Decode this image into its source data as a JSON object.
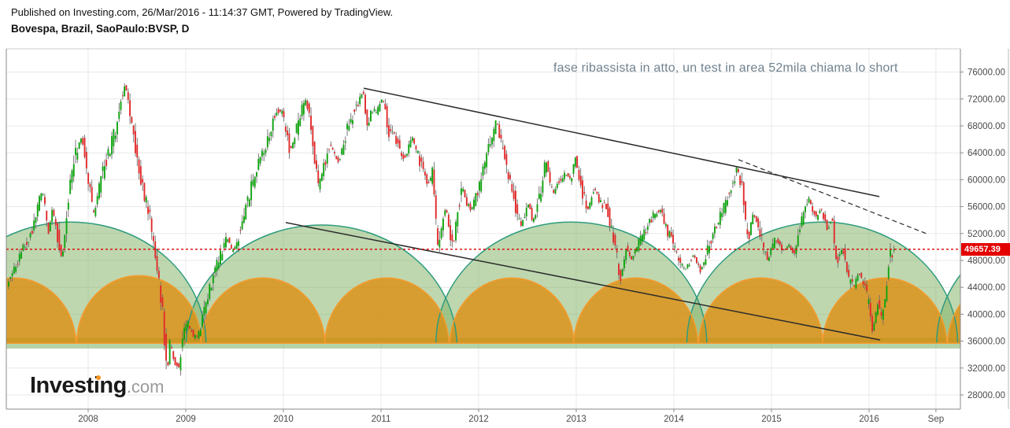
{
  "header": {
    "published": "Published on Investing.com, 26/Mar/2016 - 11:14:37 GMT, Powered by TradingView.",
    "symbol": "Bovespa, Brazil, SaoPaulo:BVSP, D"
  },
  "logo": {
    "brand": "Investing",
    "tld": ".com"
  },
  "chart_data": {
    "type": "candlestick",
    "symbol": "SaoPaulo:BVSP",
    "title": "Bovespa, Brazil, SaoPaulo:BVSP, D",
    "timeframe": "D",
    "last_price": 49657.39,
    "last_price_label": "49657.39",
    "annotation": {
      "text": "fase ribassista in atto, un test in area 52mila chiama lo short",
      "color": "#70828f"
    },
    "y_axis": {
      "ticks": [
        {
          "price": 76000,
          "label": "76000.00"
        },
        {
          "price": 72000,
          "label": "72000.00"
        },
        {
          "price": 68000,
          "label": "68000.00"
        },
        {
          "price": 64000,
          "label": "64000.00"
        },
        {
          "price": 60000,
          "label": "60000.00"
        },
        {
          "price": 56000,
          "label": "56000.00"
        },
        {
          "price": 52000,
          "label": "52000.00"
        },
        {
          "price": 48000,
          "label": "48000.00"
        },
        {
          "price": 44000,
          "label": "44000.00"
        },
        {
          "price": 40000,
          "label": "40000.00"
        },
        {
          "price": 36000,
          "label": "36000.00"
        },
        {
          "price": 32000,
          "label": "32000.00"
        },
        {
          "price": 28000,
          "label": "28000.00"
        }
      ]
    },
    "x_axis": {
      "ticks": [
        {
          "t": 2008,
          "label": "2008"
        },
        {
          "t": 2009,
          "label": "2009"
        },
        {
          "t": 2010,
          "label": "2010"
        },
        {
          "t": 2011,
          "label": "2011"
        },
        {
          "t": 2012,
          "label": "2012"
        },
        {
          "t": 2013,
          "label": "2013"
        },
        {
          "t": 2014,
          "label": "2014"
        },
        {
          "t": 2015,
          "label": "2015"
        },
        {
          "t": 2016,
          "label": "2016"
        },
        {
          "t": 2016.685,
          "label": "Sep"
        }
      ]
    },
    "price_line": {
      "price": 49657.39,
      "color": "#dd0000",
      "label_bg": "#e40000"
    },
    "trendlines": [
      {
        "t1": 2010.823,
        "p1": 73600,
        "t2": 2016.105,
        "p2": 57480,
        "dash": false
      },
      {
        "t1": 2010.024,
        "p1": 53620,
        "t2": 2016.113,
        "p2": 36180,
        "dash": false
      },
      {
        "t1": 2014.661,
        "p1": 62980,
        "t2": 2016.589,
        "p2": 51980,
        "dash": true
      }
    ],
    "cycles": {
      "base_price": 35700,
      "band": [
        34900,
        36500
      ],
      "band_fill": "rgba(120,175,97,0.55)",
      "green": {
        "centers": [
          2007.82,
          2010.39,
          2012.95,
          2015.52,
          2018.08
        ],
        "half_width_years": 1.387,
        "amplitude": 18000,
        "fill": "rgba(130,178,102,0.52)",
        "stroke": "#2e9c7e"
      },
      "orange": {
        "centers": [
          2007.24,
          2008.52,
          2009.79,
          2011.06,
          2012.34,
          2013.61,
          2014.89,
          2016.16,
          2017.44
        ],
        "half_width_years": 0.637,
        "amplitude": 10060,
        "fill": "rgba(224,135,0,0.72)",
        "stroke": "#f59b2e"
      }
    },
    "price_path": [
      [
        2007.161,
        43500
      ],
      [
        2007.242,
        46500
      ],
      [
        2007.339,
        49500
      ],
      [
        2007.435,
        52500
      ],
      [
        2007.54,
        58400
      ],
      [
        2007.605,
        52000
      ],
      [
        2007.645,
        55800
      ],
      [
        2007.742,
        47800
      ],
      [
        2007.806,
        57500
      ],
      [
        2007.863,
        63200
      ],
      [
        2007.944,
        66500
      ],
      [
        2008.0,
        61500
      ],
      [
        2008.065,
        54500
      ],
      [
        2008.145,
        60500
      ],
      [
        2008.21,
        63300
      ],
      [
        2008.29,
        67500
      ],
      [
        2008.387,
        74500
      ],
      [
        2008.468,
        67000
      ],
      [
        2008.532,
        61500
      ],
      [
        2008.597,
        57000
      ],
      [
        2008.645,
        54000
      ],
      [
        2008.726,
        46500
      ],
      [
        2008.774,
        40000
      ],
      [
        2008.815,
        31500
      ],
      [
        2008.847,
        35500
      ],
      [
        2008.887,
        33500
      ],
      [
        2008.935,
        31800
      ],
      [
        2008.984,
        37500
      ],
      [
        2009.032,
        38500
      ],
      [
        2009.081,
        36800
      ],
      [
        2009.129,
        36500
      ],
      [
        2009.194,
        40500
      ],
      [
        2009.258,
        44300
      ],
      [
        2009.339,
        47800
      ],
      [
        2009.435,
        51500
      ],
      [
        2009.484,
        49200
      ],
      [
        2009.532,
        50500
      ],
      [
        2009.613,
        55500
      ],
      [
        2009.694,
        59500
      ],
      [
        2009.758,
        62500
      ],
      [
        2009.839,
        65500
      ],
      [
        2009.935,
        70500
      ],
      [
        2010.0,
        70000
      ],
      [
        2010.081,
        64200
      ],
      [
        2010.161,
        68500
      ],
      [
        2010.242,
        72200
      ],
      [
        2010.306,
        66000
      ],
      [
        2010.371,
        58800
      ],
      [
        2010.435,
        62500
      ],
      [
        2010.484,
        65300
      ],
      [
        2010.532,
        63800
      ],
      [
        2010.581,
        62600
      ],
      [
        2010.645,
        66500
      ],
      [
        2010.742,
        70500
      ],
      [
        2010.823,
        73300
      ],
      [
        2010.871,
        68300
      ],
      [
        2010.903,
        69800
      ],
      [
        2010.968,
        70200
      ],
      [
        2011.024,
        72200
      ],
      [
        2011.089,
        67500
      ],
      [
        2011.169,
        65800
      ],
      [
        2011.25,
        63000
      ],
      [
        2011.331,
        66100
      ],
      [
        2011.411,
        62500
      ],
      [
        2011.492,
        59300
      ],
      [
        2011.54,
        61000
      ],
      [
        2011.589,
        49800
      ],
      [
        2011.637,
        53500
      ],
      [
        2011.677,
        56200
      ],
      [
        2011.718,
        51200
      ],
      [
        2011.758,
        50800
      ],
      [
        2011.798,
        55500
      ],
      [
        2011.839,
        59400
      ],
      [
        2011.887,
        56500
      ],
      [
        2011.935,
        55500
      ],
      [
        2011.984,
        57500
      ],
      [
        2012.032,
        59500
      ],
      [
        2012.113,
        64500
      ],
      [
        2012.194,
        68800
      ],
      [
        2012.274,
        63000
      ],
      [
        2012.339,
        59500
      ],
      [
        2012.435,
        52800
      ],
      [
        2012.484,
        55000
      ],
      [
        2012.524,
        56800
      ],
      [
        2012.556,
        53800
      ],
      [
        2012.589,
        54500
      ],
      [
        2012.645,
        58500
      ],
      [
        2012.702,
        62800
      ],
      [
        2012.766,
        57800
      ],
      [
        2012.823,
        59500
      ],
      [
        2012.903,
        61000
      ],
      [
        2012.952,
        59800
      ],
      [
        2013.0,
        63500
      ],
      [
        2013.065,
        58500
      ],
      [
        2013.129,
        55500
      ],
      [
        2013.194,
        58800
      ],
      [
        2013.258,
        56500
      ],
      [
        2013.323,
        55800
      ],
      [
        2013.395,
        50500
      ],
      [
        2013.468,
        45300
      ],
      [
        2013.516,
        49800
      ],
      [
        2013.573,
        48000
      ],
      [
        2013.645,
        50500
      ],
      [
        2013.726,
        52500
      ],
      [
        2013.806,
        54800
      ],
      [
        2013.871,
        55600
      ],
      [
        2013.935,
        52500
      ],
      [
        2014.0,
        50800
      ],
      [
        2014.065,
        47800
      ],
      [
        2014.129,
        46600
      ],
      [
        2014.21,
        48800
      ],
      [
        2014.29,
        46300
      ],
      [
        2014.371,
        50500
      ],
      [
        2014.452,
        53500
      ],
      [
        2014.516,
        55500
      ],
      [
        2014.597,
        59000
      ],
      [
        2014.661,
        61800
      ],
      [
        2014.71,
        58500
      ],
      [
        2014.742,
        53500
      ],
      [
        2014.774,
        51000
      ],
      [
        2014.823,
        55500
      ],
      [
        2014.887,
        52000
      ],
      [
        2014.968,
        47800
      ],
      [
        2015.048,
        51500
      ],
      [
        2015.129,
        49500
      ],
      [
        2015.194,
        50300
      ],
      [
        2015.242,
        48800
      ],
      [
        2015.306,
        53500
      ],
      [
        2015.387,
        57400
      ],
      [
        2015.468,
        54200
      ],
      [
        2015.516,
        55800
      ],
      [
        2015.581,
        52600
      ],
      [
        2015.629,
        54000
      ],
      [
        2015.677,
        47900
      ],
      [
        2015.742,
        49600
      ],
      [
        2015.806,
        45200
      ],
      [
        2015.855,
        43900
      ],
      [
        2015.903,
        46400
      ],
      [
        2015.952,
        44300
      ],
      [
        2016.0,
        42000
      ],
      [
        2016.048,
        37400
      ],
      [
        2016.097,
        41600
      ],
      [
        2016.137,
        39800
      ],
      [
        2016.177,
        43000
      ],
      [
        2016.218,
        48500
      ],
      [
        2016.258,
        49657.39
      ]
    ],
    "colors": {
      "up": "#0fa30f",
      "down": "#e12b2b",
      "wick": "#6d6d6d",
      "grid": "#e8e8e8",
      "frame": "#8a8a8a",
      "text": "#4a4a4a"
    }
  }
}
